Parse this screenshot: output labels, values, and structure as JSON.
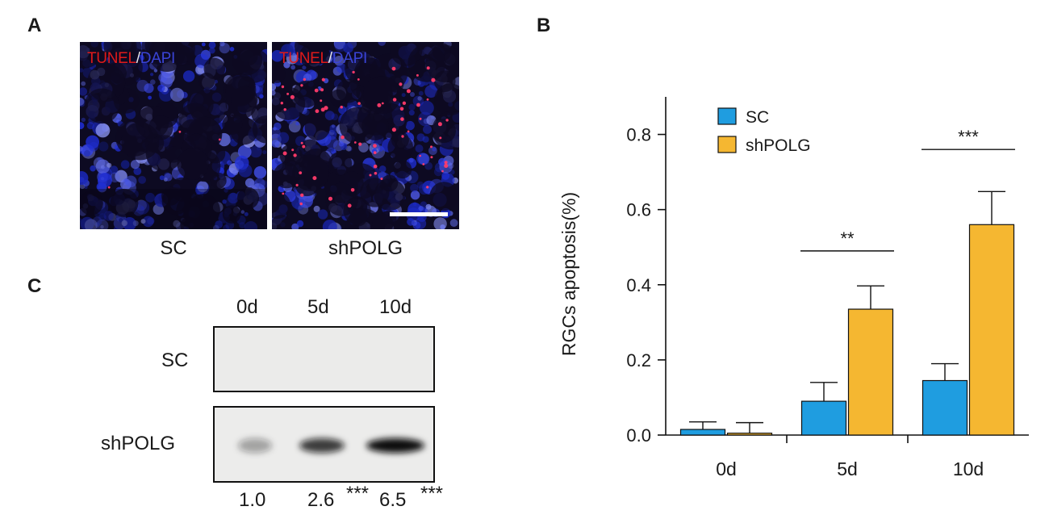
{
  "panels": {
    "A": {
      "letter": "A",
      "images": [
        {
          "channel_red": "TUNEL",
          "slash": "/",
          "channel_blue": "DAPI",
          "caption": "SC"
        },
        {
          "channel_red": "TUNEL",
          "slash": "/",
          "channel_blue": "DAPI",
          "caption": "shPOLG"
        }
      ]
    },
    "B": {
      "letter": "B"
    },
    "C": {
      "letter": "C",
      "lanes": [
        "0d",
        "5d",
        "10d"
      ],
      "rows": [
        "SC",
        "shPOLG"
      ],
      "quant": [
        "1.0",
        "2.6",
        "***",
        "6.5",
        "***"
      ],
      "band_intensity": [
        0.35,
        0.8,
        1.0
      ]
    }
  },
  "chart_data": {
    "type": "bar",
    "categories": [
      "0d",
      "5d",
      "10d"
    ],
    "ylabel": "RGCs apoptosis(%)",
    "xlabel": "",
    "ylim": [
      0,
      0.9
    ],
    "yticks": [
      0.0,
      0.2,
      0.4,
      0.6,
      0.8
    ],
    "ytick_labels": [
      "0.0",
      "0.2",
      "0.4",
      "0.6",
      "0.8"
    ],
    "legend_position": "top-left",
    "series": [
      {
        "name": "SC",
        "color": "#1f9de0",
        "values": [
          0.015,
          0.09,
          0.145
        ],
        "errors": [
          0.02,
          0.05,
          0.045
        ]
      },
      {
        "name": "shPOLG",
        "color": "#f5b731",
        "values": [
          0.005,
          0.335,
          0.56
        ],
        "errors": [
          0.028,
          0.062,
          0.088
        ]
      }
    ],
    "significance": [
      {
        "category": "5d",
        "label": "**",
        "y": 0.49
      },
      {
        "category": "10d",
        "label": "***",
        "y": 0.76
      }
    ]
  }
}
